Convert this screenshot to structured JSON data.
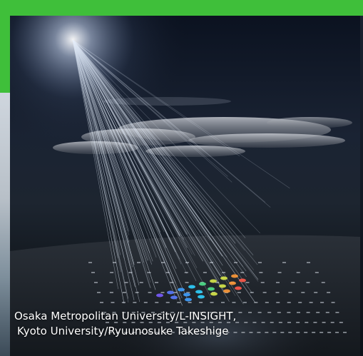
{
  "image": {
    "description_icon": "cosmic-ray-air-shower-illustration",
    "colors": {
      "frame_green": "#3fbf3a",
      "sky_top": "#0b1220",
      "beam_white": "#e8f2ff",
      "caption_text": "#ffffff"
    }
  },
  "caption": {
    "line1": "Osaka Metropolitan University/L-INSIGHT,",
    "line2": "Kyoto University/Ryuunosuke Takeshige"
  }
}
